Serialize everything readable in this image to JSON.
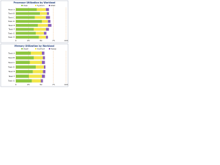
{
  "chart_data": [
    {
      "type": "hbar-stacked",
      "title": "Processor Utilization by Workload",
      "categories": [
        "Task A",
        "Task B",
        "Task C",
        "Task D",
        "Task E",
        "Task F",
        "Task G",
        "Task H"
      ],
      "series": [
        {
          "name": "User",
          "color": "#8dc63f",
          "values": [
            42,
            48,
            38,
            52,
            44,
            36,
            40,
            46
          ]
        },
        {
          "name": "System",
          "color": "#f2e64b",
          "values": [
            18,
            14,
            22,
            12,
            20,
            24,
            16,
            14
          ]
        },
        {
          "name": "Wait",
          "color": "#8a5fb8",
          "values": [
            6,
            4,
            8,
            5,
            7,
            6,
            5,
            4
          ]
        }
      ],
      "xlim": [
        0,
        100
      ],
      "xticks": [
        0,
        25,
        50,
        75,
        100
      ],
      "grid": true
    },
    {
      "type": "hbar-stacked",
      "title": "Memory Utilization by Workload",
      "categories": [
        "Task A",
        "Task B",
        "Task C",
        "Task D",
        "Task E",
        "Task F",
        "Task G"
      ],
      "series": [
        {
          "name": "Used",
          "color": "#8dc63f",
          "values": [
            30,
            36,
            28,
            40,
            34,
            26,
            32
          ]
        },
        {
          "name": "Cached",
          "color": "#f2e64b",
          "values": [
            22,
            18,
            24,
            16,
            20,
            26,
            18
          ]
        },
        {
          "name": "Swap",
          "color": "#8a5fb8",
          "values": [
            5,
            4,
            6,
            3,
            5,
            6,
            4
          ]
        }
      ],
      "xlim": [
        0,
        100
      ],
      "xticks": [
        0,
        25,
        50,
        75,
        100
      ],
      "grid": true
    }
  ]
}
